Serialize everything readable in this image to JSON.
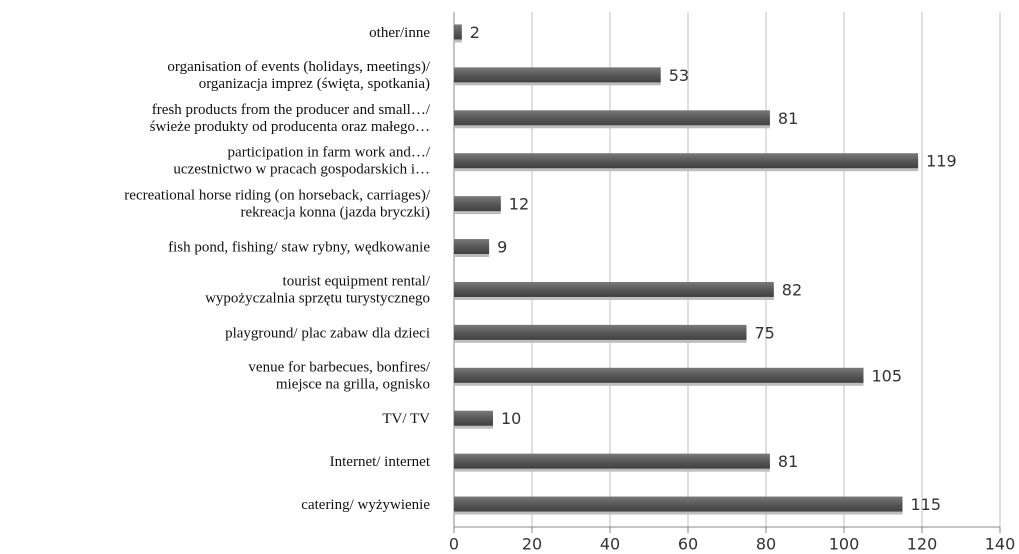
{
  "chart_data": {
    "type": "bar",
    "orientation": "horizontal",
    "categories": [
      "other/inne",
      "organisation of events (holidays, meetings)/\norganizacja imprez (święta, spotkania)",
      "fresh products from the producer and small…/\nświeże produkty od producenta oraz małego…",
      "participation in farm work and…/\nuczestnictwo w pracach gospodarskich i…",
      "recreational horse riding (on horseback, carriages)/\nrekreacja konna (jazda  bryczki)",
      "fish pond, fishing/ staw rybny, wędkowanie",
      "tourist equipment rental/\nwypożyczalnia sprzętu turystycznego",
      "playground/ plac zabaw dla dzieci",
      "venue for barbecues, bonfires/\nmiejsce na grilla, ognisko",
      "TV/ TV",
      "Internet/ internet",
      "catering/ wyżywienie"
    ],
    "values": [
      2,
      53,
      81,
      119,
      12,
      9,
      82,
      75,
      105,
      10,
      81,
      115
    ],
    "color": "#595959",
    "xlim": [
      0,
      140
    ],
    "xticks": [
      0,
      20,
      40,
      60,
      80,
      100,
      120,
      140
    ],
    "grid": true
  }
}
